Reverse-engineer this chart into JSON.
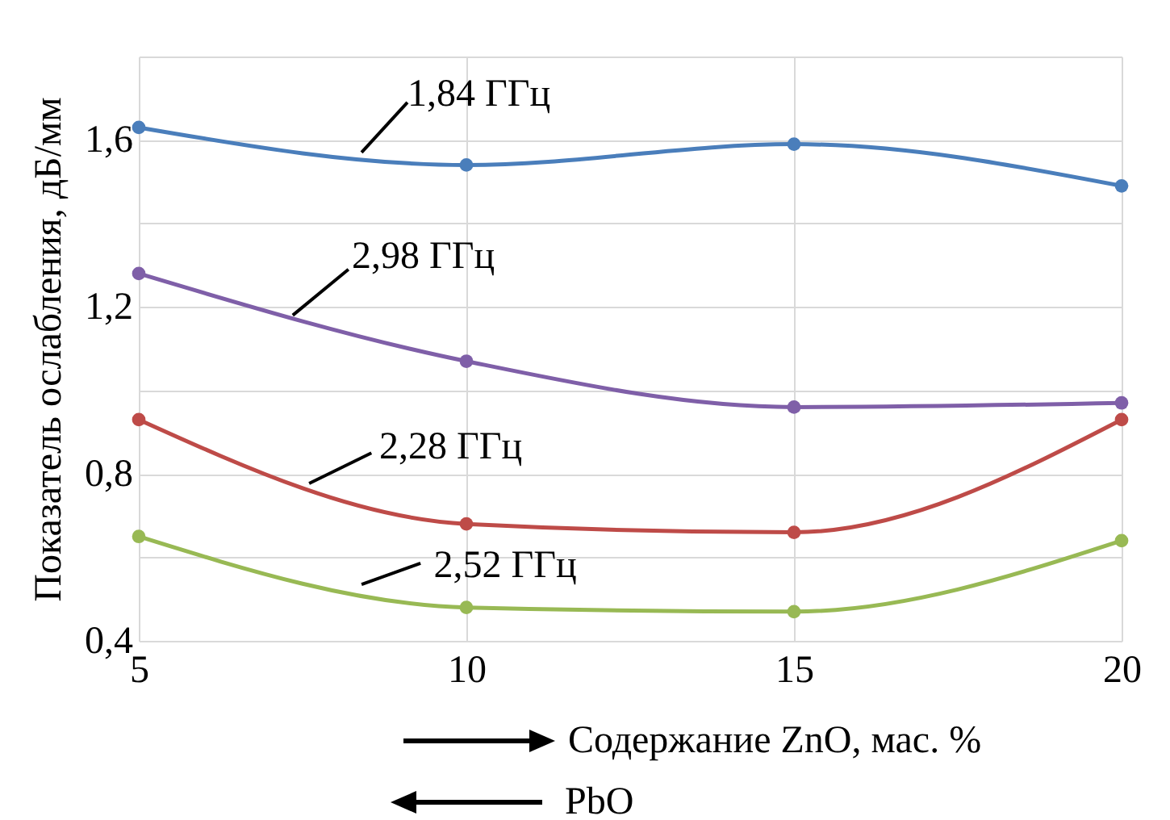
{
  "chart_data": {
    "type": "line",
    "xlabel": "Содержание ZnO, мас. %",
    "ylabel": "Показатель ослабления, дБ/мм",
    "annotations": [
      "PbO"
    ],
    "x": [
      5,
      10,
      15,
      20
    ],
    "series": [
      {
        "name": "1,84 ГГц",
        "color": "#4a7ebb",
        "values": [
          1.63,
          1.54,
          1.59,
          1.49
        ]
      },
      {
        "name": "2,98 ГГц",
        "color": "#7f5fa8",
        "values": [
          1.28,
          1.07,
          0.96,
          0.97
        ]
      },
      {
        "name": "2,28 ГГц",
        "color": "#be4b48",
        "values": [
          0.93,
          0.68,
          0.66,
          0.93
        ]
      },
      {
        "name": "2,52 ГГц",
        "color": "#98b954",
        "values": [
          0.65,
          0.48,
          0.47,
          0.64
        ]
      }
    ],
    "xlim": [
      5,
      20
    ],
    "xticks": [
      5,
      10,
      15,
      20
    ],
    "ylim": [
      0.4,
      1.8
    ],
    "yticks": [
      {
        "value": 0.4,
        "label": "0,4"
      },
      {
        "value": 0.6,
        "label": null
      },
      {
        "value": 0.8,
        "label": "0,8"
      },
      {
        "value": 1.0,
        "label": null
      },
      {
        "value": 1.2,
        "label": "1,2"
      },
      {
        "value": 1.4,
        "label": null
      },
      {
        "value": 1.6,
        "label": "1,6"
      },
      {
        "value": 1.8,
        "label": null
      }
    ],
    "grid": true,
    "marker": "circle",
    "line_style": "solid",
    "legend": false
  }
}
